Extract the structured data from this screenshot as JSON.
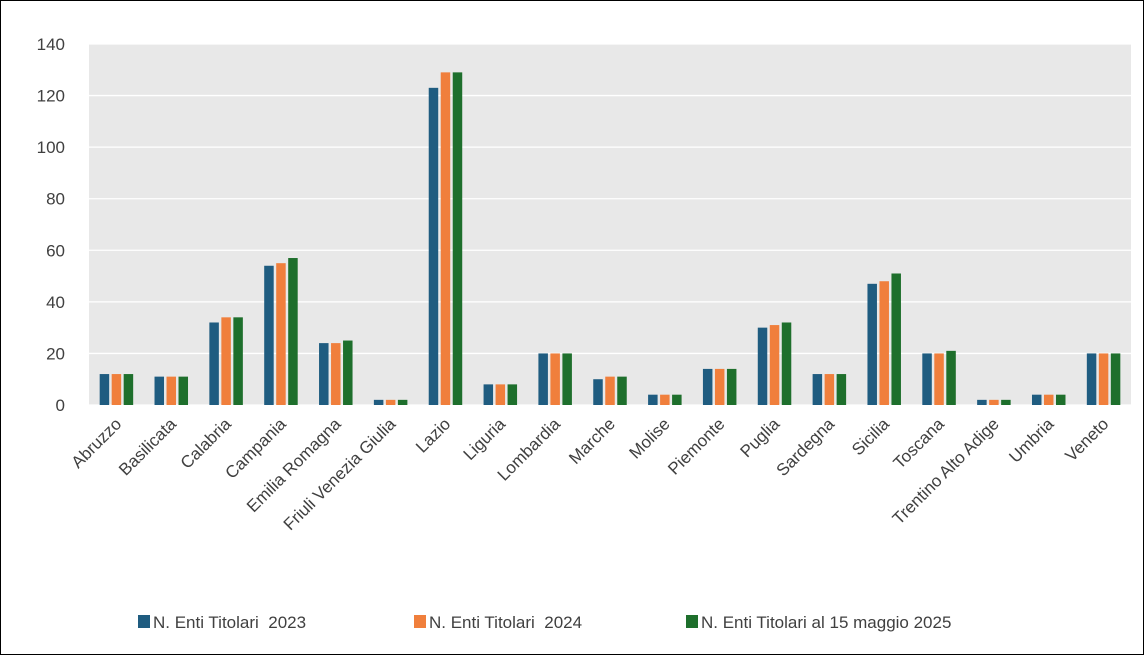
{
  "chart_data": {
    "type": "bar",
    "categories": [
      "Abruzzo",
      "Basilicata",
      "Calabria",
      "Campania",
      "Emilia Romagna",
      "Friuli Venezia Giulia",
      "Lazio",
      "Liguria",
      "Lombardia",
      "Marche",
      "Molise",
      "Piemonte",
      "Puglia",
      "Sardegna",
      "Sicilia",
      "Toscana",
      "Trentino Alto Adige",
      "Umbria",
      "Veneto"
    ],
    "series": [
      {
        "name": "N. Enti Titolari  2023",
        "color": "#1f5c80",
        "values": [
          12,
          11,
          32,
          54,
          24,
          2,
          123,
          8,
          20,
          10,
          4,
          14,
          30,
          12,
          47,
          20,
          2,
          4,
          20
        ]
      },
      {
        "name": "N. Enti Titolari  2024",
        "color": "#f07f3c",
        "values": [
          12,
          11,
          34,
          55,
          24,
          2,
          129,
          8,
          20,
          11,
          4,
          14,
          31,
          12,
          48,
          20,
          2,
          4,
          20
        ]
      },
      {
        "name": "N. Enti Titolari al 15 maggio 2025",
        "color": "#1e6f2c",
        "values": [
          12,
          11,
          34,
          57,
          25,
          2,
          129,
          8,
          20,
          11,
          4,
          14,
          32,
          12,
          51,
          21,
          2,
          4,
          20
        ]
      }
    ],
    "ylim": [
      0,
      140
    ],
    "yticks": [
      0,
      20,
      40,
      60,
      80,
      100,
      120,
      140
    ],
    "grid": true,
    "legend_position": "bottom",
    "plot_background": "#e8e8e8",
    "title": "",
    "xlabel": "",
    "ylabel": ""
  }
}
